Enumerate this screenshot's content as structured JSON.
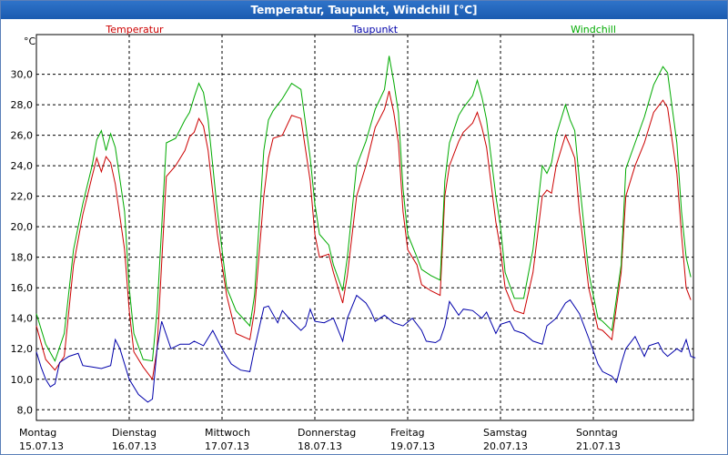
{
  "window": {
    "title": "Temperatur, Taupunkt, Windchill [°C]"
  },
  "chart_data": {
    "type": "line",
    "title": "Temperatur, Taupunkt, Windchill [°C]",
    "ylabel": "°C",
    "ylim": [
      7.3,
      32.6
    ],
    "xlim": [
      0,
      7
    ],
    "grid": true,
    "yticks": [
      "8,0",
      "10,0",
      "12,0",
      "14,0",
      "16,0",
      "18,0",
      "20,0",
      "22,0",
      "24,0",
      "26,0",
      "28,0",
      "30,0"
    ],
    "ytick_values": [
      8,
      10,
      12,
      14,
      16,
      18,
      20,
      22,
      24,
      26,
      28,
      30
    ],
    "xticks": [
      {
        "day": "Montag",
        "date": "15.07.13",
        "x": 0
      },
      {
        "day": "Dienstag",
        "date": "16.07.13",
        "x": 1
      },
      {
        "day": "Mittwoch",
        "date": "17.07.13",
        "x": 2
      },
      {
        "day": "Donnerstag",
        "date": "18.07.13",
        "x": 3
      },
      {
        "day": "Freitag",
        "date": "19.07.13",
        "x": 4
      },
      {
        "day": "Samstag",
        "date": "20.07.13",
        "x": 5
      },
      {
        "day": "Sonntag",
        "date": "21.07.13",
        "x": 6
      }
    ],
    "series": [
      {
        "name": "Temperatur",
        "color": "#cc0000",
        "points": [
          [
            0,
            13.5
          ],
          [
            0.1,
            11.3
          ],
          [
            0.2,
            10.6
          ],
          [
            0.3,
            11.5
          ],
          [
            0.4,
            17.5
          ],
          [
            0.5,
            20.8
          ],
          [
            0.6,
            23.3
          ],
          [
            0.65,
            24.5
          ],
          [
            0.7,
            23.6
          ],
          [
            0.75,
            24.6
          ],
          [
            0.8,
            24.2
          ],
          [
            0.85,
            22.8
          ],
          [
            0.95,
            18.5
          ],
          [
            1.0,
            14.5
          ],
          [
            1.05,
            11.8
          ],
          [
            1.15,
            10.8
          ],
          [
            1.25,
            10.0
          ],
          [
            1.3,
            12.0
          ],
          [
            1.4,
            23.3
          ],
          [
            1.5,
            24.0
          ],
          [
            1.6,
            25.0
          ],
          [
            1.65,
            25.9
          ],
          [
            1.7,
            26.2
          ],
          [
            1.75,
            27.1
          ],
          [
            1.8,
            26.6
          ],
          [
            1.85,
            25.0
          ],
          [
            1.95,
            19.5
          ],
          [
            2.05,
            15.5
          ],
          [
            2.15,
            13.0
          ],
          [
            2.3,
            12.6
          ],
          [
            2.35,
            14.5
          ],
          [
            2.45,
            22.0
          ],
          [
            2.5,
            24.5
          ],
          [
            2.55,
            25.8
          ],
          [
            2.65,
            26.0
          ],
          [
            2.75,
            27.3
          ],
          [
            2.85,
            27.1
          ],
          [
            2.95,
            23.0
          ],
          [
            3.0,
            19.5
          ],
          [
            3.05,
            18.0
          ],
          [
            3.15,
            18.2
          ],
          [
            3.2,
            17.0
          ],
          [
            3.3,
            15.0
          ],
          [
            3.35,
            16.8
          ],
          [
            3.45,
            22.0
          ],
          [
            3.55,
            24.0
          ],
          [
            3.65,
            26.5
          ],
          [
            3.75,
            27.7
          ],
          [
            3.8,
            28.9
          ],
          [
            3.85,
            27.5
          ],
          [
            3.9,
            25.5
          ],
          [
            3.95,
            21.0
          ],
          [
            4.0,
            18.5
          ],
          [
            4.1,
            17.5
          ],
          [
            4.15,
            16.2
          ],
          [
            4.25,
            15.8
          ],
          [
            4.35,
            15.5
          ],
          [
            4.4,
            22.0
          ],
          [
            4.45,
            24.0
          ],
          [
            4.55,
            25.6
          ],
          [
            4.6,
            26.2
          ],
          [
            4.7,
            26.8
          ],
          [
            4.75,
            27.5
          ],
          [
            4.8,
            26.5
          ],
          [
            4.85,
            25.2
          ],
          [
            4.95,
            20.3
          ],
          [
            5.0,
            18.5
          ],
          [
            5.05,
            16.0
          ],
          [
            5.15,
            14.5
          ],
          [
            5.25,
            14.3
          ],
          [
            5.35,
            17.0
          ],
          [
            5.45,
            22.0
          ],
          [
            5.5,
            22.4
          ],
          [
            5.55,
            22.2
          ],
          [
            5.6,
            24.0
          ],
          [
            5.7,
            26.0
          ],
          [
            5.75,
            25.3
          ],
          [
            5.8,
            24.5
          ],
          [
            5.85,
            21.0
          ],
          [
            5.95,
            16.0
          ],
          [
            6.05,
            13.3
          ],
          [
            6.1,
            13.2
          ],
          [
            6.2,
            12.6
          ],
          [
            6.3,
            17.0
          ],
          [
            6.35,
            22.0
          ],
          [
            6.45,
            24.0
          ],
          [
            6.55,
            25.5
          ],
          [
            6.65,
            27.5
          ],
          [
            6.75,
            28.3
          ],
          [
            6.8,
            27.8
          ],
          [
            6.9,
            23.5
          ],
          [
            6.95,
            19.5
          ],
          [
            7.0,
            16.0
          ],
          [
            7.05,
            15.2
          ]
        ]
      },
      {
        "name": "Taupunkt",
        "color": "#0000aa",
        "points": [
          [
            0,
            11.8
          ],
          [
            0.05,
            10.8
          ],
          [
            0.1,
            10.0
          ],
          [
            0.15,
            9.5
          ],
          [
            0.2,
            9.7
          ],
          [
            0.25,
            11.1
          ],
          [
            0.35,
            11.5
          ],
          [
            0.45,
            11.7
          ],
          [
            0.5,
            10.9
          ],
          [
            0.6,
            10.8
          ],
          [
            0.7,
            10.7
          ],
          [
            0.8,
            10.9
          ],
          [
            0.85,
            12.6
          ],
          [
            0.9,
            12.0
          ],
          [
            1.0,
            10.0
          ],
          [
            1.1,
            9.0
          ],
          [
            1.2,
            8.5
          ],
          [
            1.25,
            8.7
          ],
          [
            1.3,
            12.0
          ],
          [
            1.35,
            13.8
          ],
          [
            1.45,
            12.0
          ],
          [
            1.55,
            12.3
          ],
          [
            1.65,
            12.3
          ],
          [
            1.7,
            12.5
          ],
          [
            1.8,
            12.2
          ],
          [
            1.9,
            13.2
          ],
          [
            2.0,
            12.0
          ],
          [
            2.1,
            11.0
          ],
          [
            2.2,
            10.6
          ],
          [
            2.3,
            10.5
          ],
          [
            2.35,
            12.0
          ],
          [
            2.45,
            14.7
          ],
          [
            2.5,
            14.8
          ],
          [
            2.6,
            13.7
          ],
          [
            2.65,
            14.5
          ],
          [
            2.75,
            13.8
          ],
          [
            2.85,
            13.2
          ],
          [
            2.9,
            13.5
          ],
          [
            2.95,
            14.6
          ],
          [
            3.0,
            13.8
          ],
          [
            3.1,
            13.7
          ],
          [
            3.2,
            14.0
          ],
          [
            3.3,
            12.5
          ],
          [
            3.35,
            14.0
          ],
          [
            3.45,
            15.5
          ],
          [
            3.55,
            15.0
          ],
          [
            3.6,
            14.5
          ],
          [
            3.65,
            13.8
          ],
          [
            3.75,
            14.2
          ],
          [
            3.85,
            13.7
          ],
          [
            3.95,
            13.5
          ],
          [
            4.05,
            14.0
          ],
          [
            4.15,
            13.2
          ],
          [
            4.2,
            12.5
          ],
          [
            4.3,
            12.4
          ],
          [
            4.35,
            12.6
          ],
          [
            4.4,
            13.5
          ],
          [
            4.45,
            15.1
          ],
          [
            4.55,
            14.2
          ],
          [
            4.6,
            14.6
          ],
          [
            4.7,
            14.5
          ],
          [
            4.8,
            14.0
          ],
          [
            4.85,
            14.4
          ],
          [
            4.95,
            13.0
          ],
          [
            5.0,
            13.6
          ],
          [
            5.1,
            13.8
          ],
          [
            5.15,
            13.2
          ],
          [
            5.25,
            13.0
          ],
          [
            5.35,
            12.5
          ],
          [
            5.45,
            12.3
          ],
          [
            5.5,
            13.5
          ],
          [
            5.6,
            14.0
          ],
          [
            5.7,
            15.0
          ],
          [
            5.75,
            15.2
          ],
          [
            5.85,
            14.3
          ],
          [
            5.95,
            12.7
          ],
          [
            6.05,
            11.0
          ],
          [
            6.1,
            10.5
          ],
          [
            6.2,
            10.2
          ],
          [
            6.25,
            9.8
          ],
          [
            6.3,
            11.0
          ],
          [
            6.35,
            12.0
          ],
          [
            6.45,
            12.8
          ],
          [
            6.55,
            11.5
          ],
          [
            6.6,
            12.2
          ],
          [
            6.7,
            12.4
          ],
          [
            6.75,
            11.8
          ],
          [
            6.8,
            11.5
          ],
          [
            6.9,
            12.0
          ],
          [
            6.95,
            11.8
          ],
          [
            7.0,
            12.6
          ],
          [
            7.05,
            11.5
          ],
          [
            7.1,
            11.4
          ]
        ]
      },
      {
        "name": "Windchill",
        "color": "#00aa00",
        "points": [
          [
            0,
            14.3
          ],
          [
            0.1,
            12.3
          ],
          [
            0.2,
            11.2
          ],
          [
            0.3,
            13.0
          ],
          [
            0.4,
            18.5
          ],
          [
            0.5,
            21.5
          ],
          [
            0.6,
            24.0
          ],
          [
            0.65,
            25.7
          ],
          [
            0.7,
            26.3
          ],
          [
            0.75,
            25.0
          ],
          [
            0.8,
            26.1
          ],
          [
            0.85,
            25.2
          ],
          [
            0.95,
            21.0
          ],
          [
            1.0,
            16.0
          ],
          [
            1.05,
            13.0
          ],
          [
            1.15,
            11.3
          ],
          [
            1.25,
            11.2
          ],
          [
            1.3,
            14.5
          ],
          [
            1.4,
            25.5
          ],
          [
            1.5,
            25.8
          ],
          [
            1.6,
            27.0
          ],
          [
            1.65,
            27.5
          ],
          [
            1.7,
            28.5
          ],
          [
            1.75,
            29.4
          ],
          [
            1.8,
            28.8
          ],
          [
            1.85,
            27.0
          ],
          [
            1.95,
            21.0
          ],
          [
            2.05,
            16.0
          ],
          [
            2.15,
            14.5
          ],
          [
            2.3,
            13.5
          ],
          [
            2.35,
            15.5
          ],
          [
            2.45,
            25.0
          ],
          [
            2.5,
            27.0
          ],
          [
            2.55,
            27.6
          ],
          [
            2.65,
            28.4
          ],
          [
            2.75,
            29.4
          ],
          [
            2.85,
            29.0
          ],
          [
            2.95,
            24.5
          ],
          [
            3.0,
            21.5
          ],
          [
            3.05,
            19.5
          ],
          [
            3.15,
            18.8
          ],
          [
            3.2,
            17.5
          ],
          [
            3.3,
            15.8
          ],
          [
            3.35,
            18.0
          ],
          [
            3.45,
            24.0
          ],
          [
            3.55,
            25.6
          ],
          [
            3.65,
            27.7
          ],
          [
            3.75,
            29.0
          ],
          [
            3.8,
            31.2
          ],
          [
            3.85,
            29.5
          ],
          [
            3.9,
            27.5
          ],
          [
            3.95,
            22.5
          ],
          [
            4.0,
            19.5
          ],
          [
            4.1,
            18.0
          ],
          [
            4.15,
            17.2
          ],
          [
            4.25,
            16.8
          ],
          [
            4.35,
            16.5
          ],
          [
            4.4,
            23.0
          ],
          [
            4.45,
            25.5
          ],
          [
            4.55,
            27.3
          ],
          [
            4.6,
            27.8
          ],
          [
            4.7,
            28.6
          ],
          [
            4.75,
            29.6
          ],
          [
            4.8,
            28.5
          ],
          [
            4.85,
            27.0
          ],
          [
            4.95,
            22.0
          ],
          [
            5.0,
            20.0
          ],
          [
            5.05,
            17.0
          ],
          [
            5.15,
            15.3
          ],
          [
            5.25,
            15.3
          ],
          [
            5.35,
            18.5
          ],
          [
            5.45,
            24.0
          ],
          [
            5.5,
            23.5
          ],
          [
            5.55,
            24.2
          ],
          [
            5.6,
            26.0
          ],
          [
            5.7,
            28.0
          ],
          [
            5.75,
            27.0
          ],
          [
            5.8,
            26.3
          ],
          [
            5.85,
            23.0
          ],
          [
            5.95,
            17.0
          ],
          [
            6.05,
            14.0
          ],
          [
            6.1,
            13.8
          ],
          [
            6.2,
            13.2
          ],
          [
            6.3,
            17.5
          ],
          [
            6.35,
            23.8
          ],
          [
            6.45,
            25.5
          ],
          [
            6.55,
            27.2
          ],
          [
            6.65,
            29.3
          ],
          [
            6.75,
            30.5
          ],
          [
            6.8,
            30.1
          ],
          [
            6.9,
            25.5
          ],
          [
            6.95,
            21.0
          ],
          [
            7.0,
            18.0
          ],
          [
            7.05,
            16.7
          ]
        ]
      }
    ]
  }
}
